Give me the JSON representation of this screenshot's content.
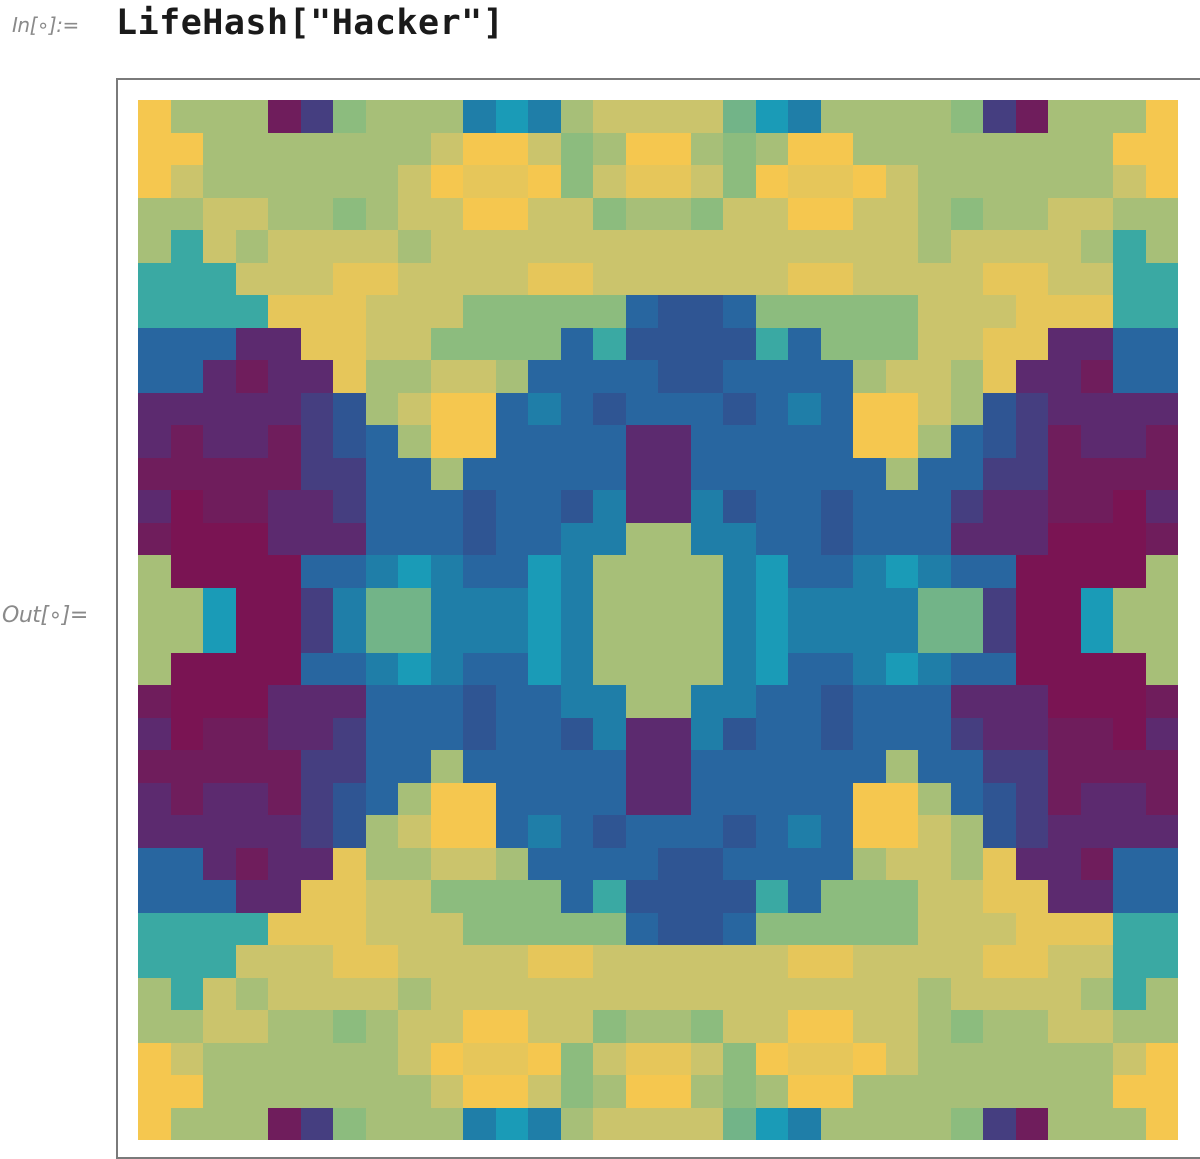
{
  "input_cell": {
    "label": "In[∘]:=",
    "code": "LifeHash[\"Hacker\"]"
  },
  "output_cell": {
    "label": "Out[∘]="
  },
  "lifehash": {
    "grid_size": 32,
    "palette": {
      "Y": "#f5c74f",
      "Z": "#e6c65a",
      "O": "#cbc46c",
      "G": "#a7bf78",
      "E": "#8cbc7e",
      "S": "#72b488",
      "A": "#3aa9a3",
      "C": "#1a9bb7",
      "T": "#1f7ea8",
      "B": "#2866a0",
      "N": "#2f5593",
      "I": "#453e80",
      "P": "#5c2a6f",
      "M": "#6f1d5c",
      "R": "#7a1453"
    },
    "rows": [
      "YGGGMIEGGGTCTGOOOOSCTGGGGEIMGGGY",
      "YYGGGGGGGOYYOEGYYGEGYYGGGGGGGGYY",
      "YOGGGGGGOYZZYEOZZOEYZZYOGGGGGGOY",
      "GGOOGGEGOOYYOOEGGEOOYYOOGEGGOOGG",
      "GAOGOOOOGOOOOOOOOOOOOOOOGOOOOGAG",
      "AAAOOOZZOOOOZZOOOOOOZZOOOOZZOOAA",
      "AAAAZZZOOOEEEEEBNNBEEEEEOOOZZZAA",
      "BBBPPZZOOEEEEBANNNNABEEEOOZZPPBB",
      "BBPMPPZGGOOGBBBBNNBBBBGOOGZPPMBB",
      "PPPPPINGOYYBTBNBBBNBTBYYOGNIPPPP",
      "PMPPMINBGYYBBBBPPBBBBBYYGBNIMPPM",
      "MMMMMIIBBGBBBBBPPBBBBBBGBBIIMMMM",
      "PRMMPPIBBBNBBNTPPTNBBNBBBIPPMMRP",
      "MRRRPPPBBBNBBTTGGTTBBNBBBPPPRRRM",
      "GRRRRBBTCTBBCTGGGGTCBBTCTBBRRRRG",
      "GGCRRITSSTTTCTGGGGTCTTTTSSIRRCGG",
      "GGCRRITSSTTTCTGGGGTCTTTTSSIRRCGG",
      "GRRRRBBTCTBBCTGGGGTCBBTCTBBRRRRG",
      "MRRRPPPBBBNBBTTGGTTBBNBBBPPPRRRM",
      "PRMMPPIBBBNBBNTPPTNBBNBBBIPPMMRP",
      "MMMMMIIBBGBBBBBPPBBBBBBGBBIIMMMM",
      "PMPPMINBGYYBBBBPPBBBBBYYGBNIMPPM",
      "PPPPPINGOYYBTBNBBBNBTBYYOGNIPPPP",
      "BBPMPPZGGOOGBBBBNNBBBBGOOGZPPMBB",
      "BBBPPZZOOEEEEBANNNNABEEEOOZZPPBB",
      "AAAAZZZOOOEEEEEBNNBEEEEEOOOZZZAA",
      "AAAOOOZZOOOOZZOOOOOOZZOOOOZZOOAA",
      "GAOGOOOOGOOOOOOOOOOOOOOOGOOOOGAG",
      "GGOOGGEGOOYYOOEGGEOOYYOOGEGGOOGG",
      "YOGGGGGGOYZZYEOZZOEYZZYOGGGGGGOY",
      "YYGGGGGGGOYYOEGYYGEGYYGGGGGGGGYY",
      "YGGGMIEGGGTCTGOOOOSCTGGGGEIMGGGY"
    ]
  }
}
